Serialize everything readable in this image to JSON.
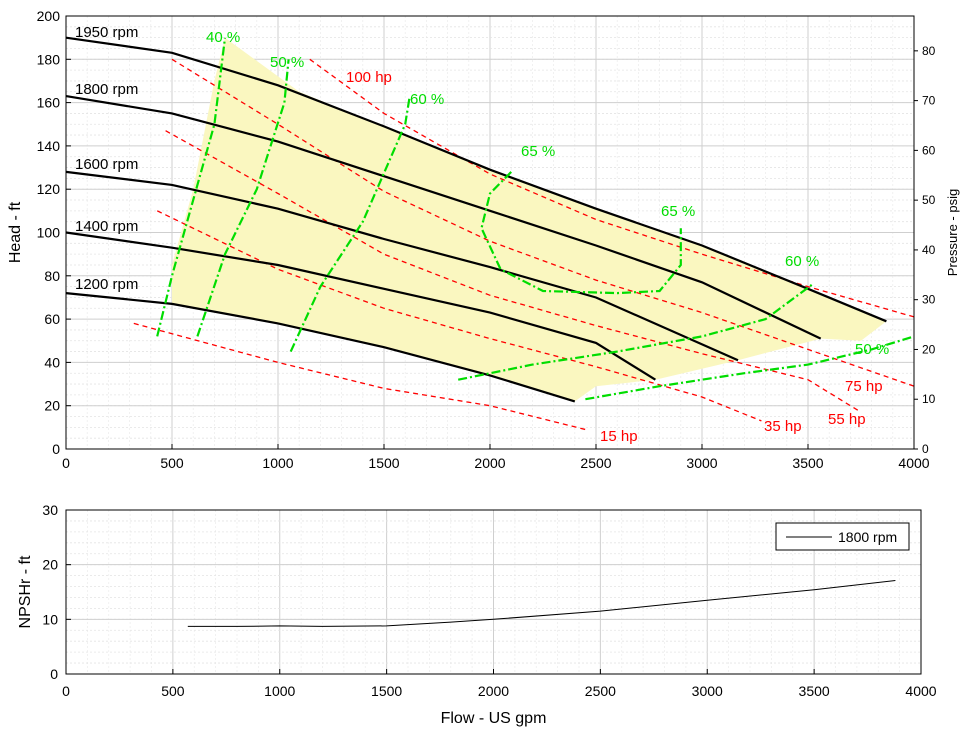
{
  "colors": {
    "speed_line": "#000000",
    "power_line": "#ff0000",
    "efficiency_line": "#00dd00",
    "preferred_region": "#faf7c0",
    "grid": "#d9d9d9",
    "npsh_line": "#000000"
  },
  "chart_data": [
    {
      "type": "line",
      "ylabel": "Head - ft",
      "y2label": "Pressure - psig",
      "xlim": [
        0,
        4000
      ],
      "ylim": [
        0,
        200
      ],
      "y2lim": [
        0,
        87
      ],
      "xticks": [
        0,
        500,
        1000,
        1500,
        2000,
        2500,
        3000,
        3500,
        4000
      ],
      "yticks": [
        0,
        20,
        40,
        60,
        80,
        100,
        120,
        140,
        160,
        180,
        200
      ],
      "y2ticks": [
        0,
        10,
        20,
        30,
        40,
        50,
        60,
        70,
        80
      ],
      "grid": true,
      "speed_curves": [
        {
          "name": "1950 rpm",
          "points": [
            [
              0,
              190
            ],
            [
              500,
              183
            ],
            [
              1000,
              168
            ],
            [
              1500,
              149
            ],
            [
              2000,
              129
            ],
            [
              2500,
              111
            ],
            [
              3000,
              94
            ],
            [
              3500,
              74
            ],
            [
              3870,
              59
            ]
          ]
        },
        {
          "name": "1800 rpm",
          "points": [
            [
              0,
              163
            ],
            [
              500,
              155
            ],
            [
              1000,
              142
            ],
            [
              1500,
              126
            ],
            [
              2000,
              110
            ],
            [
              2500,
              94
            ],
            [
              3000,
              77
            ],
            [
              3560,
              51
            ]
          ]
        },
        {
          "name": "1600 rpm",
          "points": [
            [
              0,
              128
            ],
            [
              500,
              122
            ],
            [
              1000,
              111
            ],
            [
              1500,
              97
            ],
            [
              2000,
              84
            ],
            [
              2500,
              70
            ],
            [
              3170,
              41
            ]
          ]
        },
        {
          "name": "1400 rpm",
          "points": [
            [
              0,
              100
            ],
            [
              500,
              93
            ],
            [
              1000,
              85
            ],
            [
              1500,
              74
            ],
            [
              2000,
              63
            ],
            [
              2500,
              49
            ],
            [
              2780,
              32
            ]
          ]
        },
        {
          "name": "1200 rpm",
          "points": [
            [
              0,
              72
            ],
            [
              500,
              67
            ],
            [
              1000,
              58
            ],
            [
              1500,
              47
            ],
            [
              2000,
              34
            ],
            [
              2400,
              22
            ]
          ]
        }
      ],
      "power_curves": [
        {
          "name": "100 hp",
          "points": [
            [
              1150,
              180
            ],
            [
              1500,
              155
            ],
            [
              2000,
              127
            ],
            [
              2500,
              106
            ],
            [
              3000,
              90
            ],
            [
              3500,
              75
            ],
            [
              4000,
              61
            ]
          ]
        },
        {
          "name": "75 hp",
          "points": [
            [
              500,
              180
            ],
            [
              1000,
              150
            ],
            [
              1500,
              119
            ],
            [
              2000,
              96
            ],
            [
              2500,
              78
            ],
            [
              3000,
              63
            ],
            [
              3500,
              46
            ],
            [
              4000,
              29
            ]
          ]
        },
        {
          "name": "55 hp",
          "points": [
            [
              470,
              147
            ],
            [
              1000,
              118
            ],
            [
              1500,
              90
            ],
            [
              2000,
              71
            ],
            [
              2500,
              57
            ],
            [
              3000,
              44
            ],
            [
              3500,
              32
            ],
            [
              3750,
              17
            ]
          ]
        },
        {
          "name": "35 hp",
          "points": [
            [
              430,
              110
            ],
            [
              1000,
              83
            ],
            [
              1500,
              65
            ],
            [
              2000,
              51
            ],
            [
              2500,
              38
            ],
            [
              3000,
              24
            ],
            [
              3280,
              13
            ]
          ]
        },
        {
          "name": "15 hp",
          "points": [
            [
              320,
              58
            ],
            [
              1000,
              40
            ],
            [
              1500,
              28
            ],
            [
              2000,
              20
            ],
            [
              2450,
              9
            ]
          ]
        }
      ],
      "efficiency_curves": [
        {
          "name": "40 %",
          "points": [
            [
              430,
              52
            ],
            [
              500,
              80
            ],
            [
              600,
              115
            ],
            [
              700,
              150
            ],
            [
              750,
              190
            ]
          ]
        },
        {
          "name": "50 %",
          "points": [
            [
              620,
              52
            ],
            [
              750,
              90
            ],
            [
              900,
              120
            ],
            [
              1030,
              160
            ],
            [
              1050,
              180
            ]
          ]
        },
        {
          "name": "60 %",
          "points": [
            [
              1060,
              45
            ],
            [
              1200,
              75
            ],
            [
              1400,
              105
            ],
            [
              1600,
              150
            ],
            [
              1620,
              162
            ]
          ]
        },
        {
          "name": "65 %",
          "points": [
            [
              2100,
              128
            ],
            [
              2000,
              118
            ],
            [
              1960,
              102
            ],
            [
              2050,
              83
            ],
            [
              2250,
              73
            ],
            [
              2600,
              72
            ],
            [
              2800,
              73
            ],
            [
              2900,
              85
            ],
            [
              2900,
              102
            ]
          ]
        },
        {
          "name": "60 %",
          "points": [
            [
              1850,
              32
            ],
            [
              2200,
              39
            ],
            [
              2600,
              45
            ],
            [
              3000,
              52
            ],
            [
              3300,
              60
            ],
            [
              3520,
              76
            ]
          ]
        },
        {
          "name": "50 %",
          "points": [
            [
              2450,
              23
            ],
            [
              2800,
              29
            ],
            [
              3200,
              35
            ],
            [
              3500,
              39
            ],
            [
              3800,
              46
            ],
            [
              4000,
              52
            ]
          ]
        }
      ],
      "preferred_region": [
        [
          700,
          170
        ],
        [
          750,
          190
        ],
        [
          1100,
          165
        ],
        [
          1500,
          149
        ],
        [
          2000,
          129
        ],
        [
          2500,
          111
        ],
        [
          3000,
          94
        ],
        [
          3500,
          74
        ],
        [
          3870,
          59
        ],
        [
          3750,
          50
        ],
        [
          3560,
          51
        ],
        [
          3170,
          41
        ],
        [
          2780,
          32
        ],
        [
          2500,
          29
        ],
        [
          2400,
          22
        ],
        [
          2000,
          34
        ],
        [
          1500,
          47
        ],
        [
          1000,
          58
        ],
        [
          500,
          67
        ],
        [
          500,
          85
        ],
        [
          600,
          120
        ]
      ]
    },
    {
      "type": "line",
      "xlabel": "Flow - US gpm",
      "ylabel": "NPSHr - ft",
      "xlim": [
        0,
        4000
      ],
      "ylim": [
        0,
        30
      ],
      "xticks": [
        0,
        500,
        1000,
        1500,
        2000,
        2500,
        3000,
        3500,
        4000
      ],
      "yticks": [
        0,
        10,
        20,
        30
      ],
      "grid": true,
      "legend": "top-right",
      "series": [
        {
          "name": "1800 rpm",
          "points": [
            [
              570,
              8.7
            ],
            [
              800,
              8.7
            ],
            [
              1000,
              8.8
            ],
            [
              1200,
              8.7
            ],
            [
              1500,
              8.8
            ],
            [
              1800,
              9.5
            ],
            [
              2000,
              10.0
            ],
            [
              2500,
              11.5
            ],
            [
              3000,
              13.5
            ],
            [
              3500,
              15.4
            ],
            [
              3880,
              17.1
            ]
          ]
        }
      ]
    }
  ]
}
